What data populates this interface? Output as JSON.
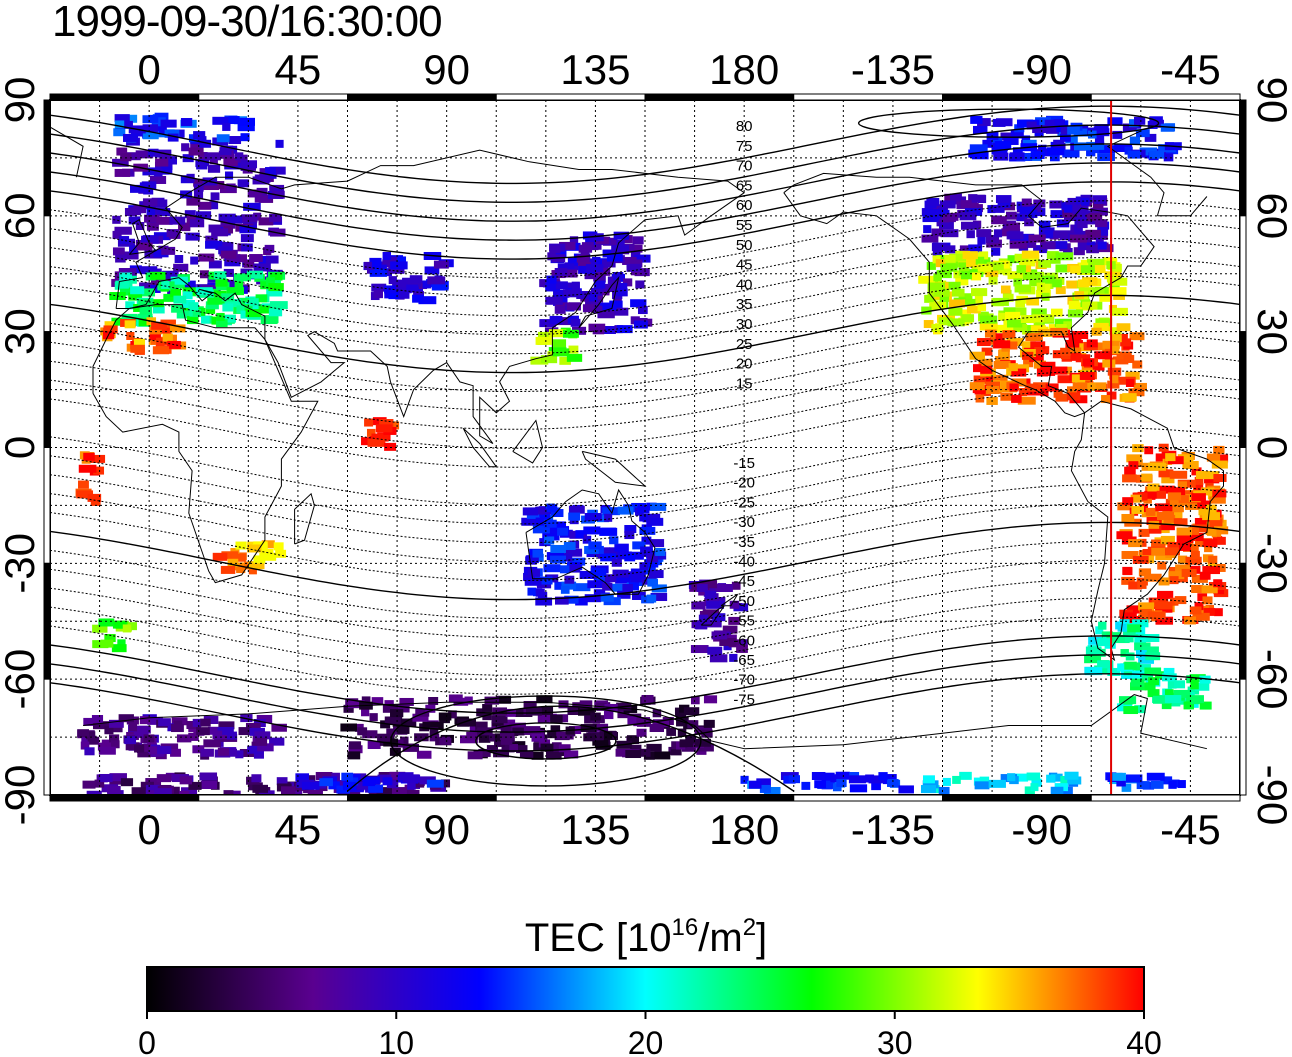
{
  "title": "1999-09-30/16:30:00",
  "map": {
    "lon_ticks_top": [
      "0",
      "45",
      "90",
      "135",
      "180",
      "-135",
      "-90",
      "-45"
    ],
    "lon_ticks_bottom": [
      "0",
      "45",
      "90",
      "135",
      "180",
      "-135",
      "-90",
      "-45"
    ],
    "lat_ticks_left": [
      "90",
      "60",
      "30",
      "0",
      "-30",
      "-60",
      "-90"
    ],
    "lat_ticks_right": [
      "90",
      "60",
      "30",
      "0",
      "-30",
      "-60",
      "-90"
    ],
    "contour_labels_north": [
      "80",
      "75",
      "70",
      "65",
      "60",
      "55",
      "50",
      "45",
      "40",
      "35",
      "30",
      "25",
      "20",
      "15"
    ],
    "contour_labels_south": [
      "-15",
      "-20",
      "-25",
      "-30",
      "-35",
      "-40",
      "-45",
      "-50",
      "-55",
      "-60",
      "-65",
      "-70",
      "-75"
    ],
    "marker_line_color": "#e00000",
    "marker_line_lon": -69
  },
  "colorbar": {
    "title_main": "TEC  [10",
    "title_sup1": "16",
    "title_mid": "/m",
    "title_sup2": "2",
    "title_end": "]",
    "ticks": [
      "0",
      "10",
      "20",
      "30",
      "40"
    ],
    "min": 0,
    "max": 40,
    "colors": [
      "#000000",
      "#5a0090",
      "#0000ff",
      "#00ffff",
      "#00ff00",
      "#ffff00",
      "#ff0000"
    ]
  },
  "chart_data": {
    "type": "heatmap",
    "variable": "TEC",
    "unit": "10^16/m^2",
    "clim": [
      0,
      40
    ],
    "regions": [
      {
        "lon": [
          -10,
          40
        ],
        "lat": [
          40,
          80
        ],
        "tec": 9
      },
      {
        "lon": [
          -10,
          40
        ],
        "lat": [
          32,
          45
        ],
        "tec": 24
      },
      {
        "lon": [
          -15,
          10
        ],
        "lat": [
          25,
          33
        ],
        "tec": 37
      },
      {
        "lon": [
          65,
          90
        ],
        "lat": [
          38,
          50
        ],
        "tec": 11
      },
      {
        "lon": [
          120,
          150
        ],
        "lat": [
          30,
          55
        ],
        "tec": 10
      },
      {
        "lon": [
          118,
          130
        ],
        "lat": [
          22,
          30
        ],
        "tec": 30
      },
      {
        "lon": [
          -125,
          -70
        ],
        "lat": [
          50,
          65
        ],
        "tec": 9
      },
      {
        "lon": [
          -125,
          -65
        ],
        "lat": [
          30,
          50
        ],
        "tec": 32
      },
      {
        "lon": [
          -110,
          -60
        ],
        "lat": [
          12,
          30
        ],
        "tec": 38
      },
      {
        "lon": [
          -65,
          -35
        ],
        "lat": [
          -45,
          0
        ],
        "tec": 38
      },
      {
        "lon": [
          -75,
          -55
        ],
        "lat": [
          -60,
          -45
        ],
        "tec": 22
      },
      {
        "lon": [
          -65,
          -40
        ],
        "lat": [
          -68,
          -58
        ],
        "tec": 23
      },
      {
        "lon": [
          115,
          155
        ],
        "lat": [
          -40,
          -15
        ],
        "tec": 13
      },
      {
        "lon": [
          165,
          180
        ],
        "lat": [
          -55,
          -35
        ],
        "tec": 8
      },
      {
        "lon": [
          -20,
          40
        ],
        "lat": [
          -80,
          -70
        ],
        "tec": 7
      },
      {
        "lon": [
          60,
          170
        ],
        "lat": [
          -80,
          -65
        ],
        "tec": 4
      },
      {
        "lon": [
          -20,
          90
        ],
        "lat": [
          -90,
          -85
        ],
        "tec": 6
      },
      {
        "lon": [
          45,
          90
        ],
        "lat": [
          -89,
          -85
        ],
        "tec": 12
      },
      {
        "lon": [
          -180,
          -130
        ],
        "lat": [
          -89,
          -85
        ],
        "tec": 14
      },
      {
        "lon": [
          -125,
          -80
        ],
        "lat": [
          -89,
          -85
        ],
        "tec": 19
      },
      {
        "lon": [
          -70,
          -45
        ],
        "lat": [
          -89,
          -85
        ],
        "tec": 15
      },
      {
        "lon": [
          -10,
          30
        ],
        "lat": [
          80,
          86
        ],
        "tec": 14
      },
      {
        "lon": [
          -110,
          -50
        ],
        "lat": [
          75,
          85
        ],
        "tec": 13
      },
      {
        "lon": [
          20,
          40
        ],
        "lat": [
          -32,
          -25
        ],
        "tec": 36
      },
      {
        "lon": [
          65,
          75
        ],
        "lat": [
          0,
          8
        ],
        "tec": 39
      },
      {
        "lon": [
          -20,
          -15
        ],
        "lat": [
          -15,
          0
        ],
        "tec": 39
      },
      {
        "lon": [
          -15,
          -5
        ],
        "lat": [
          -52,
          -45
        ],
        "tec": 29
      }
    ]
  }
}
